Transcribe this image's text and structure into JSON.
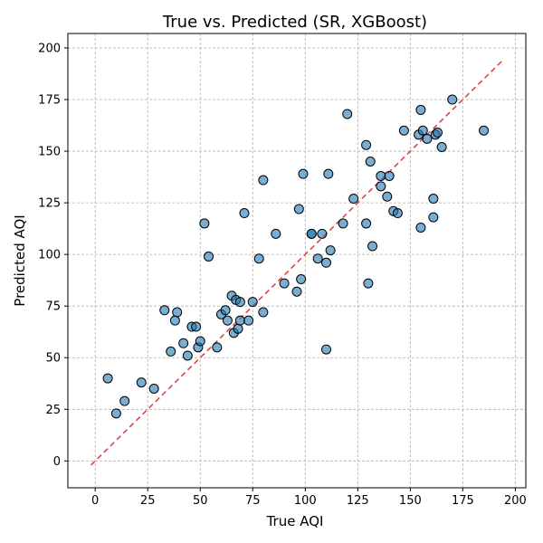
{
  "chart_data": {
    "type": "scatter",
    "title": "True vs. Predicted (SR, XGBoost)",
    "xlabel": "True AQI",
    "ylabel": "Predicted AQI",
    "xlim": [
      -13,
      205
    ],
    "ylim": [
      -13,
      207
    ],
    "xticks": [
      0,
      25,
      50,
      75,
      100,
      125,
      150,
      175,
      200
    ],
    "yticks": [
      0,
      25,
      50,
      75,
      100,
      125,
      150,
      175,
      200
    ],
    "grid": true,
    "marker_color": "#1f77b4",
    "reference_line": {
      "x": [
        -2,
        194
      ],
      "y": [
        -2,
        194
      ],
      "color": "#e34444",
      "style": "dashed"
    },
    "points": [
      [
        6,
        40
      ],
      [
        10,
        23
      ],
      [
        14,
        29
      ],
      [
        22,
        38
      ],
      [
        28,
        35
      ],
      [
        33,
        73
      ],
      [
        36,
        53
      ],
      [
        38,
        68
      ],
      [
        39,
        72
      ],
      [
        42,
        57
      ],
      [
        44,
        51
      ],
      [
        46,
        65
      ],
      [
        48,
        65
      ],
      [
        49,
        55
      ],
      [
        50,
        58
      ],
      [
        52,
        115
      ],
      [
        54,
        99
      ],
      [
        58,
        55
      ],
      [
        60,
        71
      ],
      [
        62,
        73
      ],
      [
        63,
        68
      ],
      [
        65,
        80
      ],
      [
        66,
        62
      ],
      [
        67,
        78
      ],
      [
        68,
        64
      ],
      [
        69,
        68
      ],
      [
        69,
        77
      ],
      [
        71,
        120
      ],
      [
        73,
        68
      ],
      [
        75,
        77
      ],
      [
        78,
        98
      ],
      [
        80,
        136
      ],
      [
        80,
        72
      ],
      [
        86,
        110
      ],
      [
        90,
        86
      ],
      [
        96,
        82
      ],
      [
        97,
        122
      ],
      [
        98,
        88
      ],
      [
        99,
        139
      ],
      [
        103,
        110
      ],
      [
        103,
        110
      ],
      [
        106,
        98
      ],
      [
        108,
        110
      ],
      [
        110,
        96
      ],
      [
        110,
        54
      ],
      [
        111,
        139
      ],
      [
        112,
        102
      ],
      [
        118,
        115
      ],
      [
        120,
        168
      ],
      [
        123,
        127
      ],
      [
        129,
        153
      ],
      [
        129,
        115
      ],
      [
        130,
        86
      ],
      [
        131,
        145
      ],
      [
        132,
        104
      ],
      [
        136,
        138
      ],
      [
        136,
        133
      ],
      [
        139,
        128
      ],
      [
        140,
        138
      ],
      [
        142,
        121
      ],
      [
        144,
        120
      ],
      [
        147,
        160
      ],
      [
        154,
        158
      ],
      [
        155,
        113
      ],
      [
        155,
        170
      ],
      [
        156,
        160
      ],
      [
        158,
        156
      ],
      [
        161,
        127
      ],
      [
        161,
        118
      ],
      [
        162,
        158
      ],
      [
        163,
        159
      ],
      [
        165,
        152
      ],
      [
        170,
        175
      ],
      [
        185,
        160
      ]
    ]
  }
}
